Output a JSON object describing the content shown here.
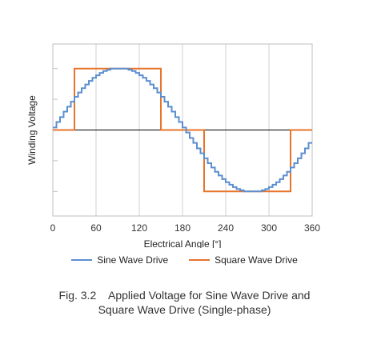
{
  "chart_data": {
    "type": "line",
    "xlabel": "Electrical Angle [°]",
    "ylabel": "Winding Voltage",
    "xlim": [
      0,
      360
    ],
    "ylim": [
      -1.4,
      1.4
    ],
    "xticks": [
      0,
      60,
      120,
      180,
      240,
      300,
      360
    ],
    "grid": "vertical",
    "legend_position": "bottom",
    "series": [
      {
        "name": "Sine Wave Drive",
        "color": "#5b8fcf",
        "x": [
          0,
          5,
          10,
          15,
          20,
          25,
          30,
          35,
          40,
          45,
          50,
          55,
          60,
          65,
          70,
          75,
          80,
          85,
          90,
          95,
          100,
          105,
          110,
          115,
          120,
          125,
          130,
          135,
          140,
          145,
          150,
          155,
          160,
          165,
          170,
          175,
          180,
          185,
          190,
          195,
          200,
          205,
          210,
          215,
          220,
          225,
          230,
          235,
          240,
          245,
          250,
          255,
          260,
          265,
          270,
          275,
          280,
          285,
          290,
          295,
          300,
          305,
          310,
          315,
          320,
          325,
          330,
          335,
          340,
          345,
          350,
          355,
          360
        ],
        "values": [
          0.04,
          0.13,
          0.21,
          0.3,
          0.38,
          0.46,
          0.54,
          0.61,
          0.68,
          0.74,
          0.8,
          0.85,
          0.89,
          0.93,
          0.96,
          0.98,
          1.0,
          1.0,
          1.0,
          1.0,
          1.0,
          0.98,
          0.96,
          0.93,
          0.89,
          0.85,
          0.8,
          0.74,
          0.68,
          0.61,
          0.54,
          0.46,
          0.38,
          0.3,
          0.21,
          0.13,
          0.04,
          -0.04,
          -0.13,
          -0.21,
          -0.3,
          -0.38,
          -0.46,
          -0.54,
          -0.61,
          -0.68,
          -0.74,
          -0.8,
          -0.85,
          -0.89,
          -0.93,
          -0.96,
          -0.98,
          -1.0,
          -1.0,
          -1.0,
          -1.0,
          -1.0,
          -0.98,
          -0.96,
          -0.93,
          -0.89,
          -0.85,
          -0.8,
          -0.74,
          -0.68,
          -0.61,
          -0.54,
          -0.46,
          -0.38,
          -0.3,
          -0.21,
          -0.13
        ]
      },
      {
        "name": "Square Wave Drive",
        "color": "#e8742a",
        "segments": [
          {
            "x0": 0,
            "x1": 30,
            "value": 0
          },
          {
            "x0": 30,
            "x1": 150,
            "value": 1
          },
          {
            "x0": 150,
            "x1": 210,
            "value": 0
          },
          {
            "x0": 210,
            "x1": 330,
            "value": -1
          },
          {
            "x0": 330,
            "x1": 360,
            "value": 0
          }
        ]
      }
    ]
  },
  "caption": {
    "line1": "Fig. 3.2    Applied Voltage for Sine Wave Drive and",
    "line2": "Square Wave Drive (Single-phase)"
  }
}
